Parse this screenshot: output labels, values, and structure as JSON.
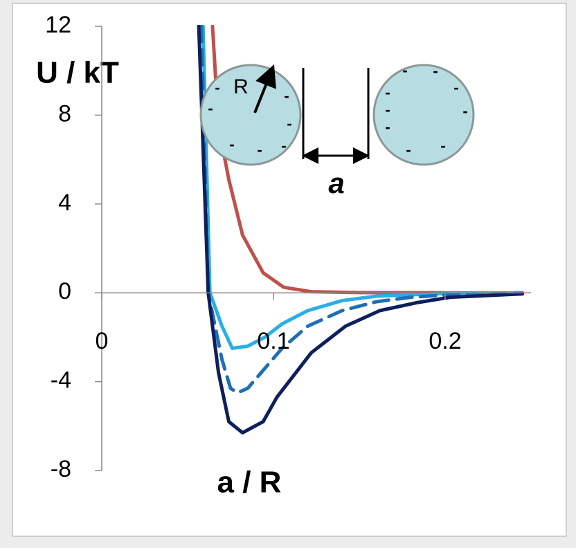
{
  "chart_data": {
    "type": "line",
    "ylabel": "U / kT",
    "xlabel": "a / R",
    "xlim": [
      0,
      0.25
    ],
    "ylim": [
      -8,
      12
    ],
    "xticks": [
      0,
      0.1,
      0.2
    ],
    "yticks": [
      -8,
      -4,
      0,
      4,
      8,
      12
    ],
    "series": [
      {
        "color": "#c0504d",
        "style": "solid",
        "x": [
          0.0645,
          0.068,
          0.074,
          0.082,
          0.094,
          0.106,
          0.122,
          0.15,
          0.2,
          0.245
        ],
        "values": [
          12,
          7.5,
          5.1,
          2.6,
          0.9,
          0.25,
          0.05,
          0.01,
          0,
          0
        ]
      },
      {
        "color": "#2aaee6",
        "style": "solid",
        "x": [
          0.059,
          0.063,
          0.07,
          0.076,
          0.085,
          0.095,
          0.105,
          0.12,
          0.14,
          0.16,
          0.2,
          0.245
        ],
        "values": [
          12,
          0,
          -1.5,
          -2.5,
          -2.4,
          -2.0,
          -1.4,
          -0.8,
          -0.35,
          -0.15,
          -0.03,
          0
        ]
      },
      {
        "color": "#1f6fb5",
        "style": "dashed",
        "x": [
          0.058,
          0.062,
          0.07,
          0.075,
          0.079,
          0.085,
          0.095,
          0.105,
          0.12,
          0.14,
          0.16,
          0.18,
          0.2,
          0.245
        ],
        "values": [
          12,
          0,
          -3,
          -4.3,
          -4.5,
          -4.3,
          -3.4,
          -2.5,
          -1.5,
          -0.8,
          -0.4,
          -0.2,
          -0.1,
          -0.02
        ]
      },
      {
        "color": "#0d1f5c",
        "style": "solid",
        "x": [
          0.0565,
          0.062,
          0.068,
          0.074,
          0.082,
          0.094,
          0.102,
          0.122,
          0.142,
          0.162,
          0.183,
          0.203,
          0.245
        ],
        "values": [
          12,
          0,
          -3.6,
          -5.8,
          -6.3,
          -5.8,
          -4.7,
          -2.7,
          -1.5,
          -0.8,
          -0.45,
          -0.2,
          -0.05
        ]
      }
    ],
    "annotations": {
      "radius_label": "R",
      "gap_label": "a",
      "charge": "-"
    }
  }
}
